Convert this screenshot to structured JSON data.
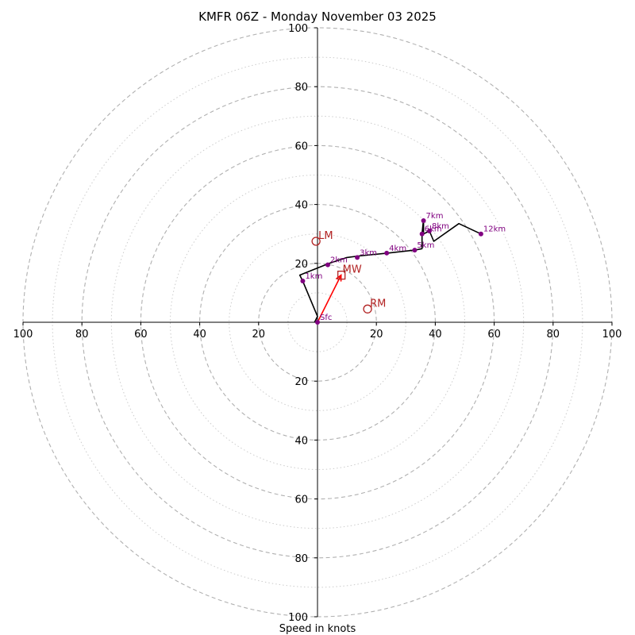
{
  "chart_data": {
    "type": "hodograph",
    "title": "KMFR 06Z - Monday November 03 2025",
    "xlabel": "Speed in knots",
    "max_speed": 100,
    "major_rings": [
      20,
      40,
      60,
      80,
      100
    ],
    "minor_rings": [
      10,
      30,
      50,
      70,
      90
    ],
    "x_tick_labels": [
      "100",
      "80",
      "60",
      "40",
      "20",
      "20",
      "40",
      "60",
      "80",
      "100"
    ],
    "y_tick_labels_up": [
      "20",
      "40",
      "60",
      "80",
      "100"
    ],
    "y_tick_labels_down": [
      "20",
      "40",
      "60",
      "80",
      "100"
    ],
    "trace": [
      {
        "u": -1,
        "v": 0
      },
      {
        "u": 0,
        "v": 2
      },
      {
        "u": -5,
        "v": 14
      },
      {
        "u": -6,
        "v": 16
      },
      {
        "u": 4,
        "v": 20
      },
      {
        "u": 10,
        "v": 22
      },
      {
        "u": 14,
        "v": 22.5
      },
      {
        "u": 24,
        "v": 23.5
      },
      {
        "u": 33,
        "v": 24.5
      },
      {
        "u": 35.5,
        "v": 25
      },
      {
        "u": 35.5,
        "v": 30
      },
      {
        "u": 36,
        "v": 35
      },
      {
        "u": 36,
        "v": 30
      },
      {
        "u": 38,
        "v": 31
      },
      {
        "u": 39.5,
        "v": 27.5
      },
      {
        "u": 48,
        "v": 33.5
      },
      {
        "u": 55.5,
        "v": 30
      }
    ],
    "height_points": [
      {
        "label": "Sfc",
        "u": 0,
        "v": 0
      },
      {
        "label": "1km",
        "u": -5,
        "v": 14
      },
      {
        "label": "2km",
        "u": 3.5,
        "v": 19.5
      },
      {
        "label": "3km",
        "u": 13.5,
        "v": 22
      },
      {
        "label": "4km",
        "u": 23.5,
        "v": 23.5
      },
      {
        "label": "5km",
        "u": 33,
        "v": 24.5
      },
      {
        "label": "6km",
        "u": 35.5,
        "v": 30
      },
      {
        "label": "7km",
        "u": 36,
        "v": 34.5
      },
      {
        "label": "8km",
        "u": 38,
        "v": 31
      },
      {
        "label": "12km",
        "u": 55.5,
        "v": 30
      }
    ],
    "motion_markers": [
      {
        "label": "LM",
        "u": -0.5,
        "v": 27.5,
        "shape": "circle"
      },
      {
        "label": "RM",
        "u": 17,
        "v": 4.5,
        "shape": "circle"
      },
      {
        "label": "MW",
        "u": 8,
        "v": 16,
        "shape": "square"
      }
    ],
    "mean_wind_vector": {
      "from_u": 0,
      "from_v": 0,
      "to_u": 8,
      "to_v": 16
    },
    "colors": {
      "trace": "#000000",
      "points": "#800080",
      "motion": "#b22222",
      "vector": "#ff0000",
      "grid": "#b0b0b0",
      "axes": "#000000"
    }
  }
}
